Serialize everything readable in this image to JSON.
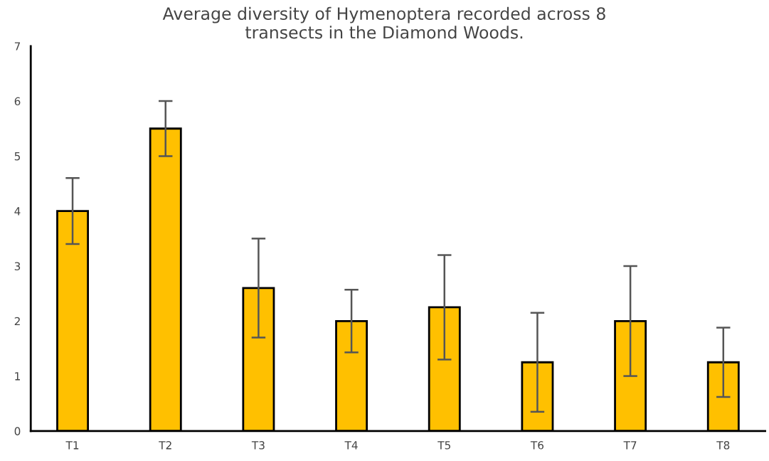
{
  "chart_data": {
    "type": "bar",
    "title": "Average diversity of Hymenoptera recorded across 8\ntransects in the Diamond Woods.",
    "categories": [
      "T1",
      "T2",
      "T3",
      "T4",
      "T5",
      "T6",
      "T7",
      "T8"
    ],
    "values": [
      4.0,
      5.5,
      2.6,
      2.0,
      2.25,
      1.25,
      2.0,
      1.25
    ],
    "errors": [
      0.6,
      0.5,
      0.9,
      0.57,
      0.95,
      0.9,
      1.0,
      0.63
    ],
    "color": "#ffc000",
    "ylim": [
      0,
      7
    ],
    "yticks": [
      0,
      1,
      2,
      3,
      4,
      5,
      6,
      7
    ],
    "grid": false,
    "legend": false
  }
}
